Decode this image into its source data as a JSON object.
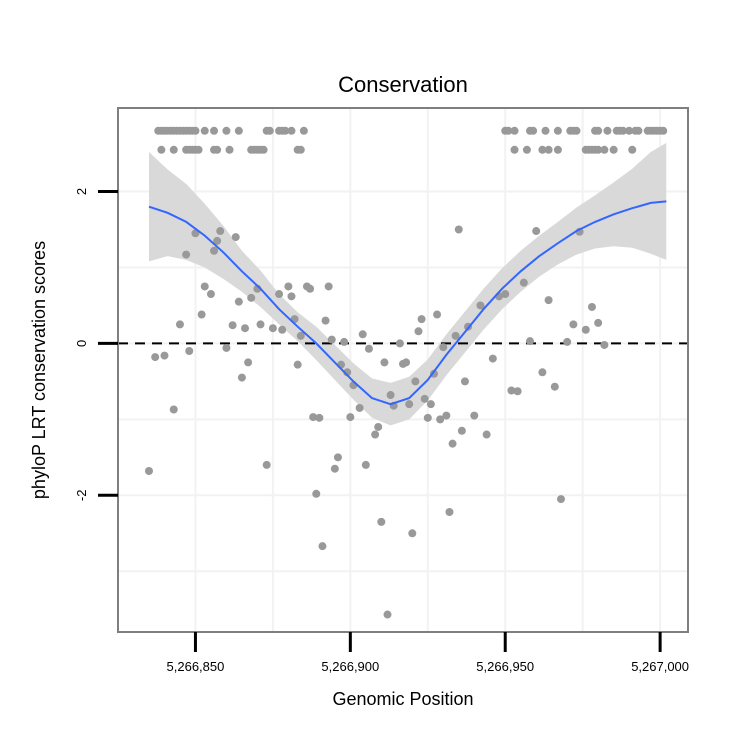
{
  "chart_data": {
    "type": "scatter",
    "title": "Conservation",
    "xlabel": "Genomic Position",
    "ylabel": "phyloP LRT conservation scores",
    "xlim": [
      5266825,
      5267009
    ],
    "ylim": [
      -3.8,
      3.1
    ],
    "xticks": [
      5266850,
      5266900,
      5266950,
      5267000
    ],
    "xtick_labels": [
      "5,266,850",
      "5,266,900",
      "5,266,950",
      "5,267,000"
    ],
    "yticks": [
      -2,
      0,
      2
    ],
    "ytick_labels": [
      "-2",
      "0",
      "2"
    ],
    "minor_yticks": [
      -3,
      -1,
      1
    ],
    "minor_xticks": [
      5266875,
      5266925,
      5266975
    ],
    "reference_line": {
      "y": 0,
      "style": "dashed"
    },
    "colors": {
      "points": "#999999",
      "smooth_line": "#3366ff",
      "ribbon": "#d9d9d9",
      "panel_border": "#7f7f7f",
      "grid": "#f2f2f2"
    },
    "points": [
      [
        5266838,
        2.8
      ],
      [
        5266839,
        2.8
      ],
      [
        5266840,
        2.8
      ],
      [
        5266841,
        2.8
      ],
      [
        5266842,
        2.8
      ],
      [
        5266843,
        2.8
      ],
      [
        5266844,
        2.8
      ],
      [
        5266845,
        2.8
      ],
      [
        5266846,
        2.8
      ],
      [
        5266847,
        2.8
      ],
      [
        5266848,
        2.8
      ],
      [
        5266849,
        2.8
      ],
      [
        5266850,
        2.8
      ],
      [
        5266853,
        2.8
      ],
      [
        5266856,
        2.8
      ],
      [
        5266860,
        2.8
      ],
      [
        5266864,
        2.8
      ],
      [
        5266873,
        2.8
      ],
      [
        5266874,
        2.8
      ],
      [
        5266877,
        2.8
      ],
      [
        5266878,
        2.8
      ],
      [
        5266879,
        2.8
      ],
      [
        5266881,
        2.8
      ],
      [
        5266885,
        2.8
      ],
      [
        5266839,
        2.55
      ],
      [
        5266843,
        2.55
      ],
      [
        5266847,
        2.55
      ],
      [
        5266848,
        2.55
      ],
      [
        5266849,
        2.55
      ],
      [
        5266850,
        2.55
      ],
      [
        5266851,
        2.55
      ],
      [
        5266856,
        2.55
      ],
      [
        5266857,
        2.55
      ],
      [
        5266861,
        2.55
      ],
      [
        5266868,
        2.55
      ],
      [
        5266869,
        2.55
      ],
      [
        5266870,
        2.55
      ],
      [
        5266871,
        2.55
      ],
      [
        5266872,
        2.55
      ],
      [
        5266883,
        2.55
      ],
      [
        5266884,
        2.55
      ],
      [
        5266950,
        2.8
      ],
      [
        5266951,
        2.8
      ],
      [
        5266953,
        2.8
      ],
      [
        5266958,
        2.8
      ],
      [
        5266959,
        2.8
      ],
      [
        5266963,
        2.8
      ],
      [
        5266967,
        2.8
      ],
      [
        5266971,
        2.8
      ],
      [
        5266972,
        2.8
      ],
      [
        5266973,
        2.8
      ],
      [
        5266979,
        2.8
      ],
      [
        5266980,
        2.8
      ],
      [
        5266983,
        2.8
      ],
      [
        5266986,
        2.8
      ],
      [
        5266987,
        2.8
      ],
      [
        5266988,
        2.8
      ],
      [
        5266990,
        2.8
      ],
      [
        5266992,
        2.8
      ],
      [
        5266993,
        2.8
      ],
      [
        5266996,
        2.8
      ],
      [
        5266997,
        2.8
      ],
      [
        5266998,
        2.8
      ],
      [
        5266999,
        2.8
      ],
      [
        5267000,
        2.8
      ],
      [
        5267001,
        2.8
      ],
      [
        5266953,
        2.55
      ],
      [
        5266957,
        2.55
      ],
      [
        5266962,
        2.55
      ],
      [
        5266964,
        2.55
      ],
      [
        5266967,
        2.55
      ],
      [
        5266976,
        2.55
      ],
      [
        5266977,
        2.55
      ],
      [
        5266978,
        2.55
      ],
      [
        5266979,
        2.55
      ],
      [
        5266980,
        2.55
      ],
      [
        5266982,
        2.55
      ],
      [
        5266985,
        2.55
      ],
      [
        5266991,
        2.55
      ],
      [
        5266835,
        -1.68
      ],
      [
        5266837,
        -0.18
      ],
      [
        5266840,
        -0.16
      ],
      [
        5266843,
        -0.87
      ],
      [
        5266845,
        0.25
      ],
      [
        5266847,
        1.17
      ],
      [
        5266848,
        -0.1
      ],
      [
        5266850,
        1.45
      ],
      [
        5266852,
        0.38
      ],
      [
        5266853,
        0.75
      ],
      [
        5266855,
        0.65
      ],
      [
        5266856,
        1.22
      ],
      [
        5266857,
        1.35
      ],
      [
        5266858,
        1.48
      ],
      [
        5266860,
        -0.06
      ],
      [
        5266862,
        0.24
      ],
      [
        5266863,
        1.4
      ],
      [
        5266864,
        0.55
      ],
      [
        5266865,
        -0.45
      ],
      [
        5266866,
        0.2
      ],
      [
        5266867,
        -0.25
      ],
      [
        5266868,
        0.6
      ],
      [
        5266870,
        0.72
      ],
      [
        5266871,
        0.25
      ],
      [
        5266873,
        -1.6
      ],
      [
        5266875,
        0.2
      ],
      [
        5266877,
        0.65
      ],
      [
        5266878,
        0.18
      ],
      [
        5266880,
        0.75
      ],
      [
        5266881,
        0.62
      ],
      [
        5266882,
        0.32
      ],
      [
        5266883,
        -0.28
      ],
      [
        5266884,
        0.1
      ],
      [
        5266886,
        0.75
      ],
      [
        5266887,
        0.72
      ],
      [
        5266888,
        -0.97
      ],
      [
        5266889,
        -1.98
      ],
      [
        5266890,
        -0.98
      ],
      [
        5266891,
        -2.67
      ],
      [
        5266892,
        0.3
      ],
      [
        5266893,
        0.75
      ],
      [
        5266894,
        0.05
      ],
      [
        5266895,
        -1.65
      ],
      [
        5266896,
        -1.5
      ],
      [
        5266897,
        -0.28
      ],
      [
        5266898,
        0.02
      ],
      [
        5266899,
        -0.38
      ],
      [
        5266900,
        -0.97
      ],
      [
        5266901,
        -0.55
      ],
      [
        5266903,
        -0.85
      ],
      [
        5266904,
        0.12
      ],
      [
        5266905,
        -1.6
      ],
      [
        5266906,
        -0.07
      ],
      [
        5266908,
        -1.2
      ],
      [
        5266909,
        -1.1
      ],
      [
        5266910,
        -2.35
      ],
      [
        5266911,
        -0.25
      ],
      [
        5266912,
        -3.57
      ],
      [
        5266913,
        -0.68
      ],
      [
        5266914,
        -0.82
      ],
      [
        5266916,
        0.0
      ],
      [
        5266917,
        -0.27
      ],
      [
        5266918,
        -0.25
      ],
      [
        5266919,
        -0.8
      ],
      [
        5266920,
        -2.5
      ],
      [
        5266921,
        -0.5
      ],
      [
        5266922,
        0.16
      ],
      [
        5266923,
        0.32
      ],
      [
        5266924,
        -0.73
      ],
      [
        5266925,
        -0.98
      ],
      [
        5266926,
        -0.8
      ],
      [
        5266927,
        -0.4
      ],
      [
        5266928,
        0.38
      ],
      [
        5266929,
        -1.0
      ],
      [
        5266930,
        -0.05
      ],
      [
        5266931,
        -0.95
      ],
      [
        5266932,
        -2.22
      ],
      [
        5266933,
        -1.32
      ],
      [
        5266934,
        0.1
      ],
      [
        5266935,
        1.5
      ],
      [
        5266936,
        -1.15
      ],
      [
        5266937,
        -0.5
      ],
      [
        5266938,
        0.22
      ],
      [
        5266940,
        -0.95
      ],
      [
        5266942,
        0.5
      ],
      [
        5266944,
        -1.2
      ],
      [
        5266946,
        -0.2
      ],
      [
        5266948,
        0.62
      ],
      [
        5266950,
        0.65
      ],
      [
        5266952,
        -0.62
      ],
      [
        5266954,
        -0.63
      ],
      [
        5266956,
        0.8
      ],
      [
        5266958,
        0.03
      ],
      [
        5266960,
        1.48
      ],
      [
        5266962,
        -0.38
      ],
      [
        5266964,
        0.57
      ],
      [
        5266966,
        -0.57
      ],
      [
        5266968,
        -2.05
      ],
      [
        5266970,
        0.02
      ],
      [
        5266972,
        0.25
      ],
      [
        5266974,
        1.47
      ],
      [
        5266976,
        0.18
      ],
      [
        5266978,
        0.48
      ],
      [
        5266980,
        0.27
      ],
      [
        5266982,
        -0.02
      ]
    ],
    "smooth": {
      "x": [
        5266835,
        5266841,
        5266847,
        5266853,
        5266859,
        5266865,
        5266871,
        5266877,
        5266883,
        5266889,
        5266895,
        5266901,
        5266907,
        5266913,
        5266919,
        5266925,
        5266931,
        5266937,
        5266943,
        5266949,
        5266955,
        5266961,
        5266967,
        5266973,
        5266979,
        5266985,
        5266991,
        5266997,
        5267002
      ],
      "y": [
        1.8,
        1.72,
        1.6,
        1.42,
        1.2,
        0.95,
        0.72,
        0.45,
        0.22,
        0.0,
        -0.25,
        -0.5,
        -0.72,
        -0.8,
        -0.72,
        -0.48,
        -0.15,
        0.15,
        0.45,
        0.72,
        0.95,
        1.15,
        1.32,
        1.48,
        1.6,
        1.7,
        1.78,
        1.85,
        1.87
      ],
      "lower": [
        1.08,
        1.15,
        1.1,
        1.0,
        0.85,
        0.68,
        0.48,
        0.25,
        0.03,
        -0.22,
        -0.48,
        -0.74,
        -0.98,
        -1.08,
        -1.0,
        -0.75,
        -0.42,
        -0.12,
        0.18,
        0.45,
        0.68,
        0.88,
        1.04,
        1.17,
        1.25,
        1.28,
        1.26,
        1.18,
        1.1
      ],
      "upper": [
        2.52,
        2.29,
        2.1,
        1.84,
        1.55,
        1.22,
        0.96,
        0.65,
        0.41,
        0.22,
        -0.02,
        -0.26,
        -0.46,
        -0.52,
        -0.44,
        -0.21,
        0.12,
        0.42,
        0.72,
        0.99,
        1.22,
        1.42,
        1.6,
        1.79,
        1.95,
        2.12,
        2.3,
        2.52,
        2.64
      ]
    }
  }
}
